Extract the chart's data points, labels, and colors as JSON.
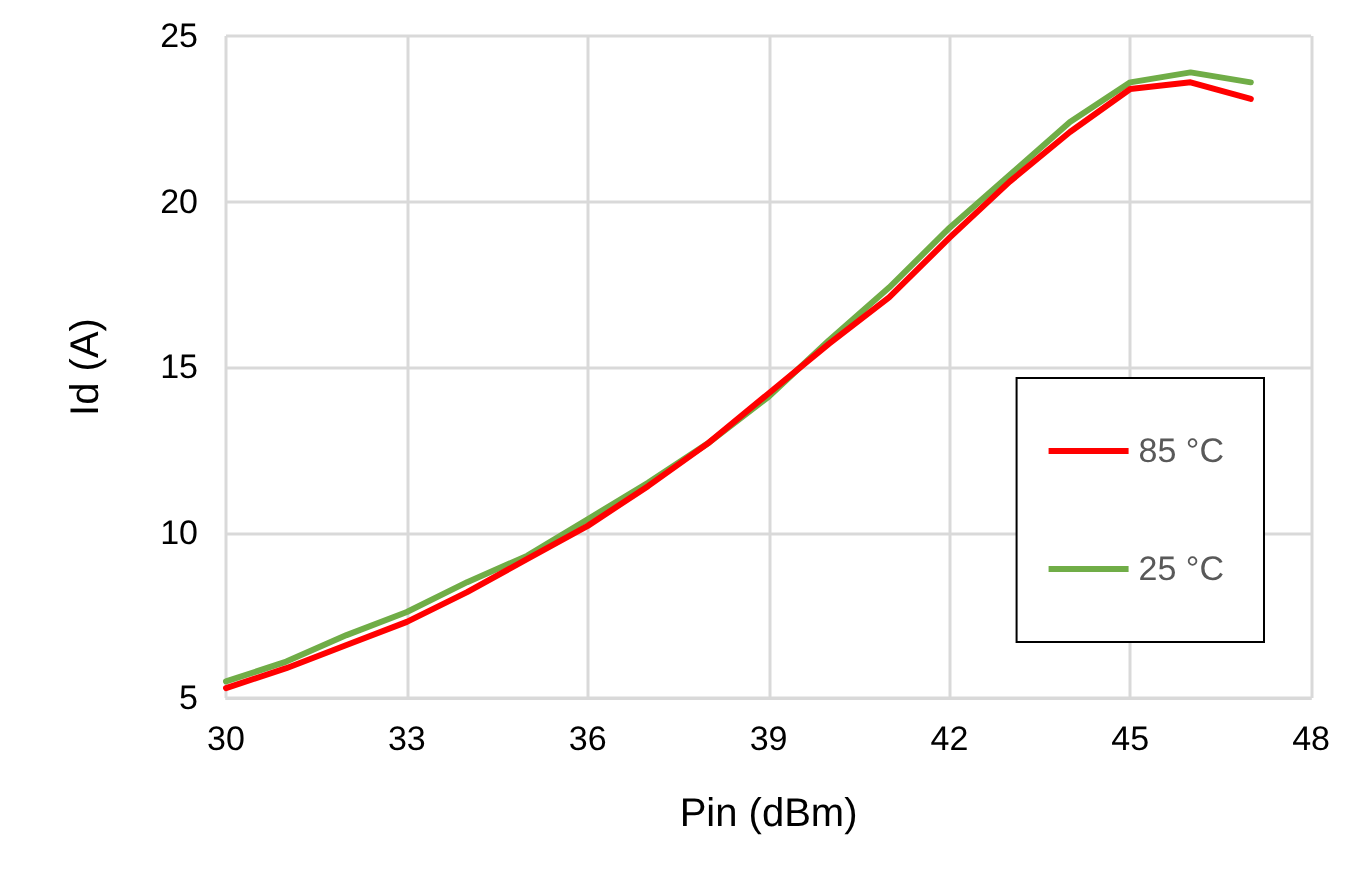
{
  "chart_data": {
    "type": "line",
    "xlabel": "Pin (dBm)",
    "ylabel": "Id (A)",
    "x": [
      30,
      31,
      32,
      33,
      34,
      35,
      36,
      37,
      38,
      39,
      40,
      41,
      42,
      43,
      44,
      45,
      46,
      47
    ],
    "series": [
      {
        "name": "85 °C",
        "color": "#ff0000",
        "values": [
          5.3,
          5.9,
          6.6,
          7.3,
          8.2,
          9.2,
          10.2,
          11.4,
          12.7,
          14.2,
          15.7,
          17.1,
          18.9,
          20.6,
          22.1,
          23.4,
          23.6,
          23.1
        ]
      },
      {
        "name": "25 °C",
        "color": "#70ad47",
        "values": [
          5.5,
          6.1,
          6.9,
          7.6,
          8.5,
          9.3,
          10.4,
          11.5,
          12.7,
          14.1,
          15.8,
          17.4,
          19.2,
          20.8,
          22.4,
          23.6,
          23.9,
          23.6
        ]
      }
    ],
    "xlim": [
      30,
      48
    ],
    "xticks": [
      30,
      33,
      36,
      39,
      42,
      45,
      48
    ],
    "ylim": [
      5,
      25
    ],
    "yticks": [
      5,
      10,
      15,
      20,
      25
    ],
    "grid": true,
    "legend": "bottom right",
    "marker": "none",
    "line_style": "solid"
  }
}
